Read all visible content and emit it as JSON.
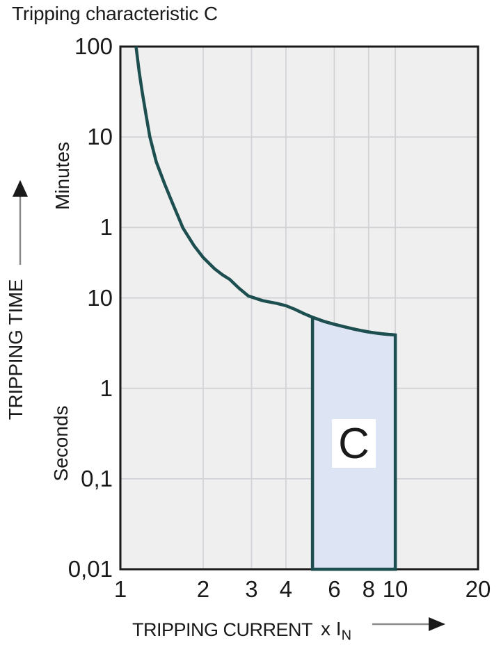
{
  "title": "Tripping characteristic C",
  "colors": {
    "curve": "#1d4f50",
    "region_fill": "#dde4f3",
    "plot_bg": "#efefef",
    "grid": "#d2d2d7",
    "frame": "#1a1a1a",
    "text": "#1a1a1a",
    "arrow_line": "#8a8a8a"
  },
  "y_axis": {
    "title": "TRIPPING TIME",
    "unit_minutes": "Minutes",
    "unit_seconds": "Seconds",
    "ticks": [
      {
        "label": "100",
        "t_seconds": 6000
      },
      {
        "label": "10",
        "t_seconds": 600
      },
      {
        "label": "1",
        "t_seconds": 60
      },
      {
        "label": "10",
        "t_seconds": 10
      },
      {
        "label": "1",
        "t_seconds": 1
      },
      {
        "label": "0,1",
        "t_seconds": 0.1
      },
      {
        "label": "0,01",
        "t_seconds": 0.01
      }
    ],
    "gridlines_seconds": [
      600,
      60,
      10,
      1,
      0.1
    ]
  },
  "x_axis": {
    "title": "TRIPPING CURRENT",
    "unit_label": "x I",
    "unit_sub": "N",
    "ticks": [
      {
        "label": "1",
        "v": 1
      },
      {
        "label": "2",
        "v": 2
      },
      {
        "label": "3",
        "v": 3
      },
      {
        "label": "4",
        "v": 4
      },
      {
        "label": "6",
        "v": 6
      },
      {
        "label": "8",
        "v": 8
      },
      {
        "label": "10",
        "v": 10
      },
      {
        "label": "20",
        "v": 20
      }
    ],
    "gridlines_v": [
      2,
      3,
      4,
      6,
      8,
      10
    ]
  },
  "chart_data": {
    "type": "line",
    "title": "Tripping characteristic C",
    "xlabel": "TRIPPING CURRENT (x IN)",
    "ylabel": "TRIPPING TIME (Minutes above, Seconds below)",
    "x_scale": "log",
    "y_scale": "log",
    "xlim": [
      1,
      20
    ],
    "ylim_seconds": [
      0.01,
      6000
    ],
    "grid": true,
    "curve": {
      "name": "C tripping curve",
      "points_I_t_seconds": [
        [
          1.14,
          6000
        ],
        [
          1.17,
          3200
        ],
        [
          1.2,
          1900
        ],
        [
          1.24,
          1050
        ],
        [
          1.28,
          600
        ],
        [
          1.35,
          320
        ],
        [
          1.45,
          180
        ],
        [
          1.55,
          110
        ],
        [
          1.62,
          80
        ],
        [
          1.69,
          59
        ],
        [
          1.85,
          38
        ],
        [
          2.0,
          28
        ],
        [
          2.2,
          21
        ],
        [
          2.35,
          18
        ],
        [
          2.5,
          16
        ],
        [
          2.7,
          12.8
        ],
        [
          2.92,
          10.5
        ],
        [
          3.3,
          9.3
        ],
        [
          3.7,
          8.7
        ],
        [
          4.0,
          8.2
        ],
        [
          4.3,
          7.5
        ],
        [
          4.65,
          6.7
        ],
        [
          5.0,
          6.1
        ],
        [
          5.5,
          5.5
        ],
        [
          6.0,
          5.1
        ],
        [
          6.5,
          4.8
        ],
        [
          7.0,
          4.55
        ],
        [
          7.5,
          4.35
        ],
        [
          8.0,
          4.2
        ],
        [
          8.5,
          4.08
        ],
        [
          9.0,
          4.0
        ],
        [
          9.5,
          3.94
        ],
        [
          10.0,
          3.89
        ]
      ]
    },
    "region": {
      "label": "C",
      "x_range": [
        5,
        10
      ],
      "bottom_seconds": 0.01,
      "top_points_I_t_seconds": [
        [
          5.0,
          6.1
        ],
        [
          5.5,
          5.5
        ],
        [
          6.0,
          5.1
        ],
        [
          6.5,
          4.8
        ],
        [
          7.0,
          4.55
        ],
        [
          7.5,
          4.35
        ],
        [
          8.0,
          4.2
        ],
        [
          8.5,
          4.08
        ],
        [
          9.0,
          4.0
        ],
        [
          9.5,
          3.94
        ],
        [
          10.0,
          3.89
        ]
      ]
    }
  }
}
